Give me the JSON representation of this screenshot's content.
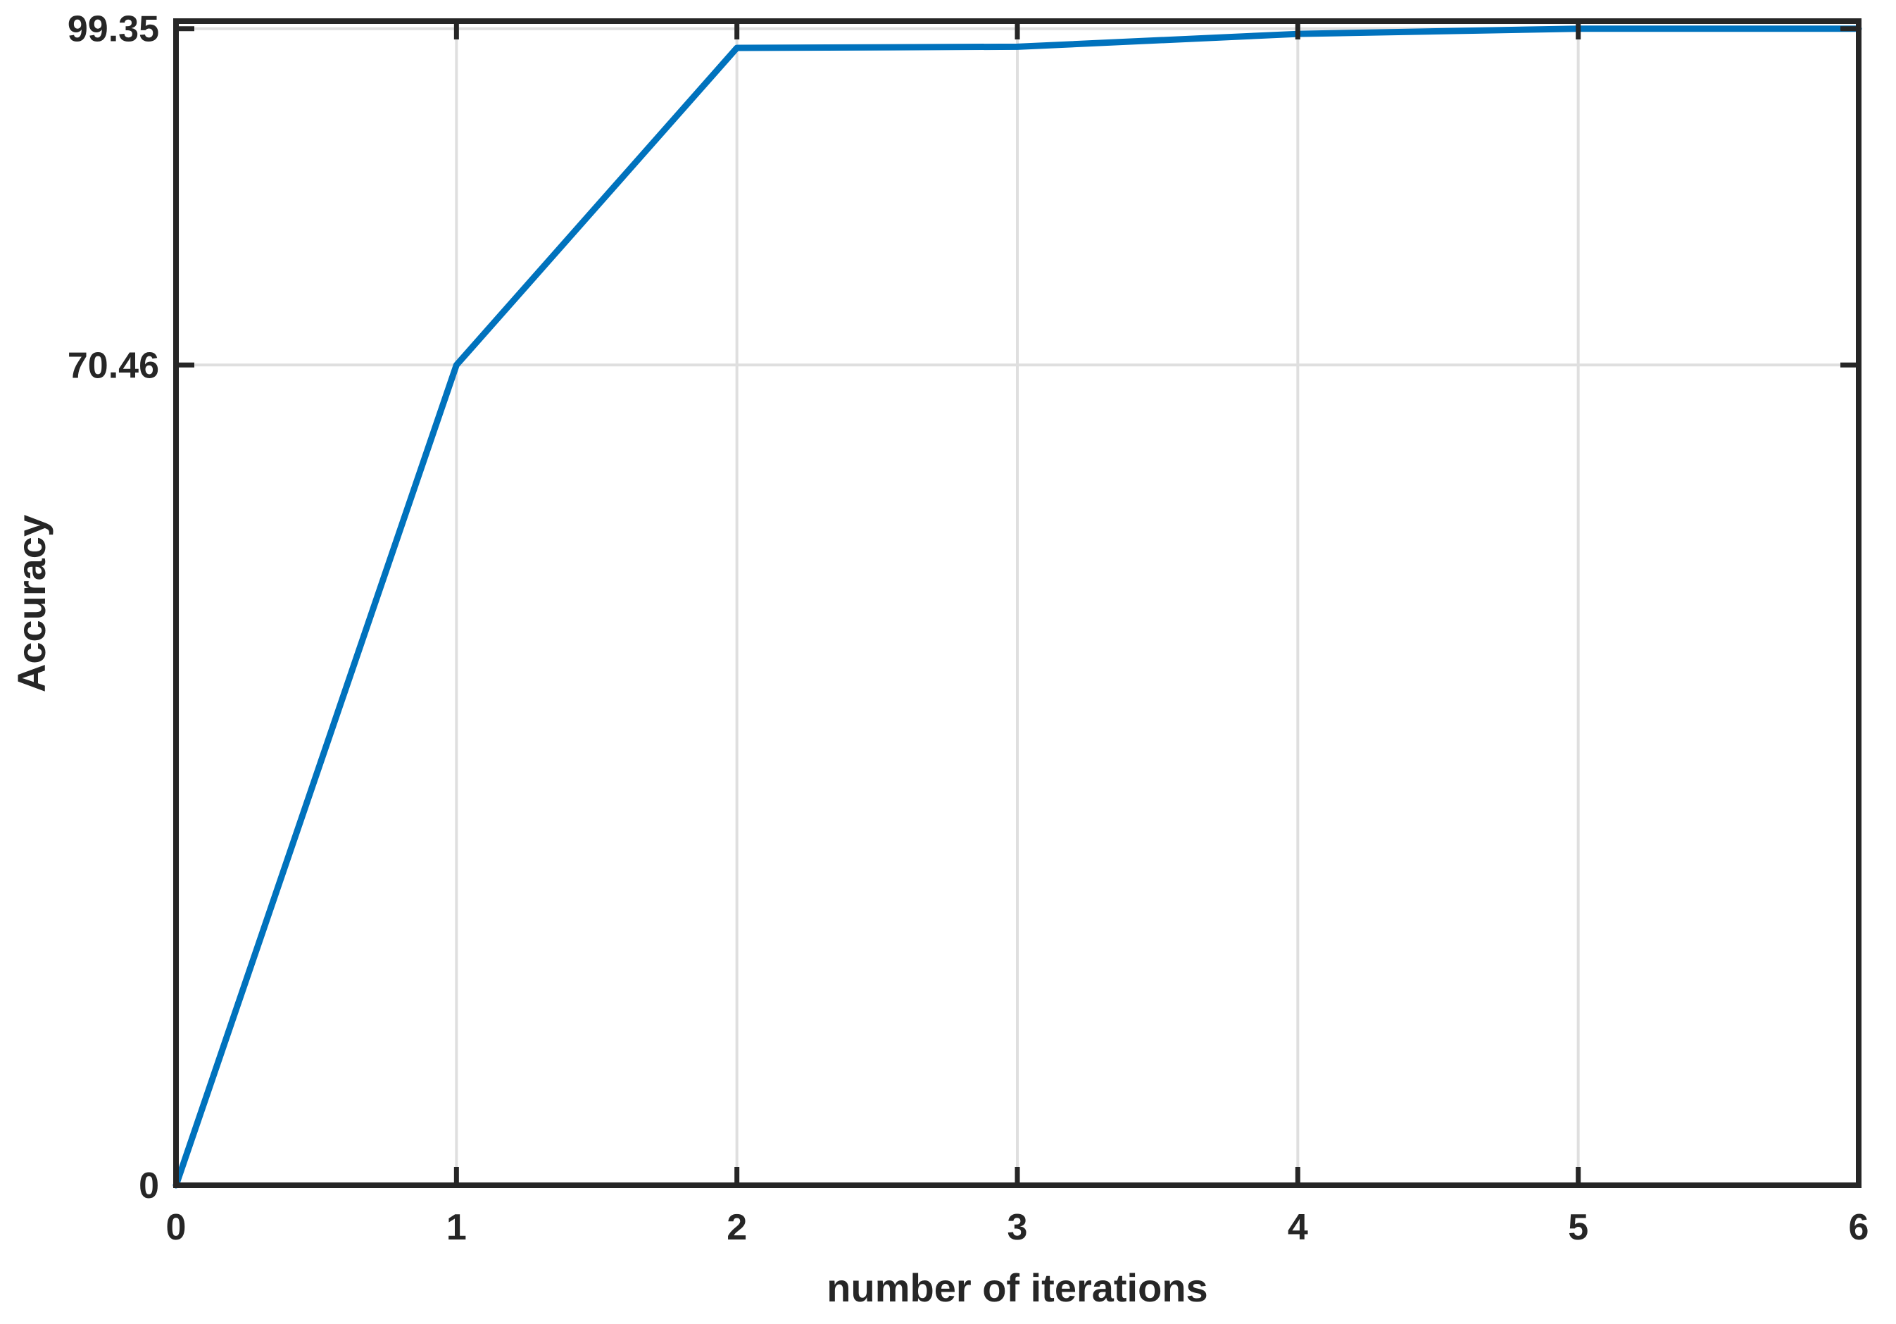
{
  "figure": {
    "background": "#ffffff"
  },
  "chart_data": {
    "type": "line",
    "title": "",
    "xlabel": "number of iterations",
    "ylabel": "Accuracy",
    "x": [
      0,
      1,
      2,
      3,
      4,
      5,
      6
    ],
    "y": [
      0,
      70.46,
      97.7,
      97.8,
      98.9,
      99.35,
      99.35
    ],
    "series": [
      {
        "name": "Accuracy",
        "x": [
          0,
          1,
          2,
          3,
          4,
          5,
          6
        ],
        "y": [
          0,
          70.46,
          97.7,
          97.8,
          98.9,
          99.35,
          99.35
        ]
      }
    ],
    "xlim": [
      0,
      6
    ],
    "ylim": [
      0,
      100
    ],
    "xticks": [
      {
        "value": 0,
        "label": "0"
      },
      {
        "value": 1,
        "label": "1"
      },
      {
        "value": 2,
        "label": "2"
      },
      {
        "value": 3,
        "label": "3"
      },
      {
        "value": 4,
        "label": "4"
      },
      {
        "value": 5,
        "label": "5"
      },
      {
        "value": 6,
        "label": "6"
      }
    ],
    "yticks": [
      {
        "value": 0,
        "label": "0"
      },
      {
        "value": 70.46,
        "label": "70.46"
      },
      {
        "value": 99.35,
        "label": "99.35"
      }
    ],
    "grid": true,
    "legend_position": "none",
    "line_color": "#0072BD",
    "axis_color": "#262626",
    "grid_color": "#DFDFDF",
    "tick_direction": "in"
  }
}
